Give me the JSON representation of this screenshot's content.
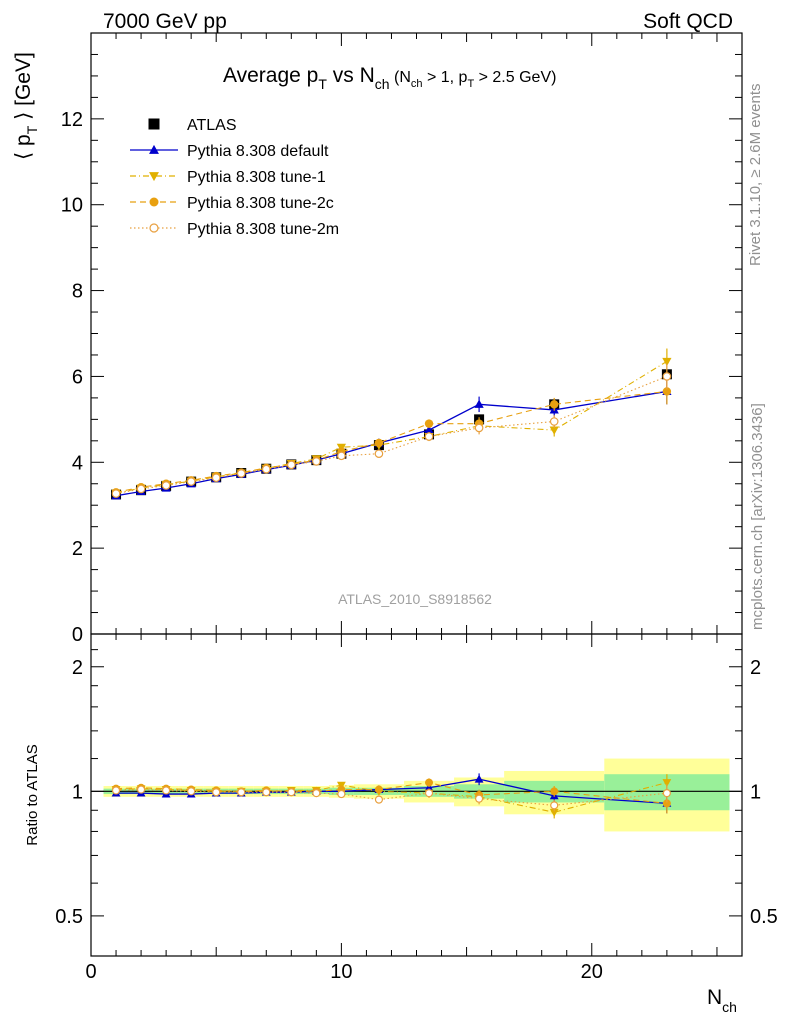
{
  "header": {
    "left": "7000 GeV pp",
    "right": "Soft QCD"
  },
  "side_labels": {
    "rivet": "Rivet 3.1.10, ≥ 2.6M events",
    "mcplots": "mcplots.cern.ch [arXiv:1306.3436]"
  },
  "colors": {
    "atlas": "#000000",
    "default": "#0000cc",
    "tune1": "#e0b000",
    "tune2c": "#e8a010",
    "tune2m": "#e8a040",
    "band_inner": "#99f099",
    "band_outer": "#ffff99"
  },
  "chart_data": [
    {
      "type": "line",
      "title": {
        "main": "Average p",
        "main_sub": "T",
        "vs": " vs N",
        "vs_sub": "ch",
        "cond_open": " (N",
        "cond_sub1": "ch",
        "cond_mid": " > 1, p",
        "cond_sub2": "T",
        "cond_close": " > 2.5 GeV)"
      },
      "ylabel": {
        "open": "⟨ p",
        "sub": "T",
        "close": " ⟩  [GeV]"
      },
      "watermark": "ATLAS_2010_S8918562",
      "xlim": [
        0,
        26
      ],
      "ylim": [
        0,
        14
      ],
      "y_ticks": [
        0,
        2,
        4,
        6,
        8,
        10,
        12
      ],
      "legend_position": "top-left",
      "series": [
        {
          "name": "ATLAS",
          "marker": "square",
          "x": [
            1,
            2,
            3,
            4,
            5,
            6,
            7,
            8,
            9,
            10,
            11.5,
            13.5,
            15.5,
            18.5,
            23
          ],
          "y": [
            3.25,
            3.35,
            3.45,
            3.55,
            3.65,
            3.75,
            3.85,
            3.95,
            4.05,
            4.2,
            4.4,
            4.65,
            5.0,
            5.35,
            6.05
          ]
        },
        {
          "name": "Pythia 8.308 default",
          "marker": "triangle-up",
          "line": "solid",
          "x": [
            1,
            2,
            3,
            4,
            5,
            6,
            7,
            8,
            9,
            10,
            11.5,
            13.5,
            15.5,
            18.5,
            23
          ],
          "y": [
            3.22,
            3.32,
            3.4,
            3.5,
            3.62,
            3.72,
            3.83,
            3.93,
            4.05,
            4.2,
            4.45,
            4.75,
            5.35,
            5.22,
            5.65
          ],
          "err": [
            0.04,
            0.04,
            0.04,
            0.04,
            0.04,
            0.04,
            0.04,
            0.05,
            0.05,
            0.06,
            0.08,
            0.1,
            0.18,
            0.15,
            0.3
          ]
        },
        {
          "name": "Pythia 8.308 tune-1",
          "marker": "triangle-down",
          "line": "dashdot",
          "x": [
            1,
            2,
            3,
            4,
            5,
            6,
            7,
            8,
            9,
            10,
            11.5,
            13.5,
            15.5,
            18.5,
            23
          ],
          "y": [
            3.28,
            3.4,
            3.48,
            3.56,
            3.66,
            3.75,
            3.86,
            3.97,
            4.08,
            4.35,
            4.4,
            4.6,
            4.85,
            4.75,
            6.35
          ],
          "err": [
            0.04,
            0.04,
            0.04,
            0.04,
            0.04,
            0.04,
            0.04,
            0.05,
            0.05,
            0.06,
            0.08,
            0.1,
            0.15,
            0.15,
            0.3
          ]
        },
        {
          "name": "Pythia 8.308 tune-2c",
          "marker": "circle",
          "line": "dashed",
          "x": [
            1,
            2,
            3,
            4,
            5,
            6,
            7,
            8,
            9,
            10,
            11.5,
            13.5,
            15.5,
            18.5,
            23
          ],
          "y": [
            3.3,
            3.42,
            3.5,
            3.58,
            3.68,
            3.76,
            3.87,
            3.95,
            4.05,
            4.25,
            4.45,
            4.9,
            4.9,
            5.35,
            5.65
          ],
          "err": [
            0.04,
            0.04,
            0.04,
            0.04,
            0.04,
            0.04,
            0.04,
            0.05,
            0.05,
            0.06,
            0.08,
            0.1,
            0.15,
            0.15,
            0.3
          ]
        },
        {
          "name": "Pythia 8.308 tune-2m",
          "marker": "circle-open",
          "line": "dotted",
          "x": [
            1,
            2,
            3,
            4,
            5,
            6,
            7,
            8,
            9,
            10,
            11.5,
            13.5,
            15.5,
            18.5,
            23
          ],
          "y": [
            3.27,
            3.38,
            3.46,
            3.55,
            3.64,
            3.74,
            3.84,
            3.94,
            4.02,
            4.15,
            4.2,
            4.6,
            4.8,
            4.95,
            6.0
          ],
          "err": [
            0.04,
            0.04,
            0.04,
            0.04,
            0.04,
            0.04,
            0.04,
            0.05,
            0.05,
            0.06,
            0.08,
            0.1,
            0.15,
            0.15,
            0.3
          ]
        }
      ]
    },
    {
      "type": "line",
      "ylabel": "Ratio to ATLAS",
      "xlabel": {
        "main": "N",
        "sub": "ch"
      },
      "xlim": [
        0,
        26
      ],
      "ylim": [
        0.4,
        2.4
      ],
      "y_scale": "log",
      "x_ticks": [
        0,
        10,
        20
      ],
      "y_ticks": [
        0.5,
        1,
        2
      ],
      "bands": {
        "edges": [
          0.5,
          1.5,
          2.5,
          3.5,
          4.5,
          5.5,
          6.5,
          7.5,
          8.5,
          9.5,
          10.5,
          12.5,
          14.5,
          16.5,
          20.5,
          25.5
        ],
        "inner": [
          0.015,
          0.015,
          0.015,
          0.015,
          0.015,
          0.015,
          0.015,
          0.015,
          0.015,
          0.02,
          0.02,
          0.03,
          0.04,
          0.06,
          0.1
        ],
        "outer": [
          0.03,
          0.03,
          0.03,
          0.03,
          0.03,
          0.03,
          0.03,
          0.03,
          0.03,
          0.035,
          0.04,
          0.06,
          0.08,
          0.12,
          0.2
        ]
      },
      "series": [
        {
          "name": "Pythia 8.308 default",
          "marker": "triangle-up",
          "x": [
            1,
            2,
            3,
            4,
            5,
            6,
            7,
            8,
            9,
            10,
            11.5,
            13.5,
            15.5,
            18.5,
            23
          ],
          "y": [
            0.99,
            0.99,
            0.985,
            0.985,
            0.99,
            0.99,
            0.995,
            0.995,
            1.0,
            1.0,
            1.01,
            1.02,
            1.07,
            0.975,
            0.935
          ],
          "err": [
            0.012,
            0.012,
            0.012,
            0.012,
            0.012,
            0.012,
            0.012,
            0.013,
            0.013,
            0.015,
            0.02,
            0.025,
            0.035,
            0.03,
            0.05
          ]
        },
        {
          "name": "Pythia 8.308 tune-1",
          "marker": "triangle-down",
          "x": [
            1,
            2,
            3,
            4,
            5,
            6,
            7,
            8,
            9,
            10,
            11.5,
            13.5,
            15.5,
            18.5,
            23
          ],
          "y": [
            1.01,
            1.015,
            1.01,
            1.005,
            1.0,
            1.0,
            1.0,
            1.005,
            1.005,
            1.035,
            1.0,
            0.99,
            0.97,
            0.89,
            1.05
          ],
          "err": [
            0.012,
            0.012,
            0.012,
            0.012,
            0.012,
            0.012,
            0.012,
            0.013,
            0.013,
            0.015,
            0.02,
            0.025,
            0.03,
            0.03,
            0.05
          ]
        },
        {
          "name": "Pythia 8.308 tune-2c",
          "marker": "circle",
          "x": [
            1,
            2,
            3,
            4,
            5,
            6,
            7,
            8,
            9,
            10,
            11.5,
            13.5,
            15.5,
            18.5,
            23
          ],
          "y": [
            1.015,
            1.02,
            1.015,
            1.01,
            1.005,
            1.0,
            1.005,
            1.0,
            1.0,
            1.01,
            1.01,
            1.05,
            0.98,
            1.0,
            0.935
          ],
          "err": [
            0.012,
            0.012,
            0.012,
            0.012,
            0.012,
            0.012,
            0.012,
            0.013,
            0.013,
            0.015,
            0.02,
            0.025,
            0.03,
            0.03,
            0.05
          ]
        },
        {
          "name": "Pythia 8.308 tune-2m",
          "marker": "circle-open",
          "x": [
            1,
            2,
            3,
            4,
            5,
            6,
            7,
            8,
            9,
            10,
            11.5,
            13.5,
            15.5,
            18.5,
            23
          ],
          "y": [
            1.005,
            1.01,
            1.005,
            1.0,
            0.995,
            0.995,
            0.995,
            0.995,
            0.99,
            0.985,
            0.955,
            0.99,
            0.96,
            0.925,
            0.99
          ],
          "err": [
            0.012,
            0.012,
            0.012,
            0.012,
            0.012,
            0.012,
            0.012,
            0.013,
            0.013,
            0.015,
            0.02,
            0.025,
            0.03,
            0.03,
            0.05
          ]
        }
      ]
    }
  ]
}
